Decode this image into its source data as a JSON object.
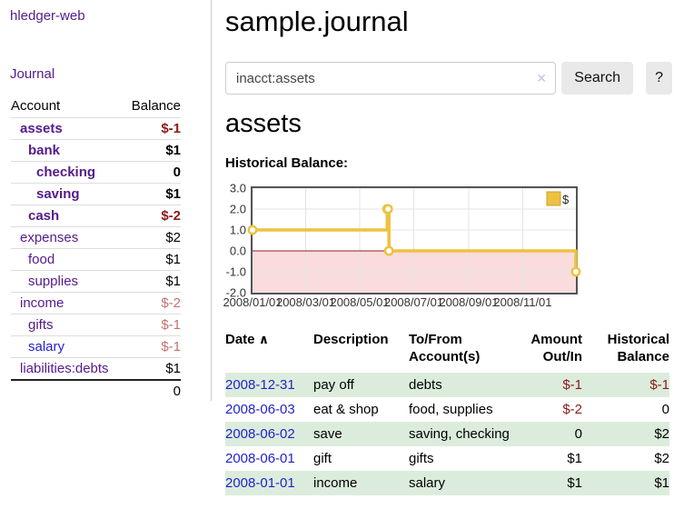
{
  "sidebar": {
    "app_title": "hledger-web",
    "journal_link": "Journal",
    "accounts": {
      "col_account": "Account",
      "col_balance": "Balance",
      "rows": [
        {
          "name": "assets",
          "balance": "$-1",
          "level": 1,
          "current": true,
          "balance_tone": "neg-strong",
          "link_tone": "visited"
        },
        {
          "name": "bank",
          "balance": "$1",
          "level": 2,
          "current": true,
          "balance_tone": "pos-strong",
          "link_tone": "visited"
        },
        {
          "name": "checking",
          "balance": "0",
          "level": 3,
          "current": true,
          "balance_tone": "pos-strong",
          "link_tone": "visited"
        },
        {
          "name": "saving",
          "balance": "$1",
          "level": 3,
          "current": true,
          "balance_tone": "pos-strong",
          "link_tone": "visited"
        },
        {
          "name": "cash",
          "balance": "$-2",
          "level": 2,
          "current": true,
          "balance_tone": "neg-strong",
          "link_tone": "visited"
        },
        {
          "name": "expenses",
          "balance": "$2",
          "level": 1,
          "current": false,
          "balance_tone": "plain",
          "link_tone": "visited"
        },
        {
          "name": "food",
          "balance": "$1",
          "level": 2,
          "current": false,
          "balance_tone": "plain",
          "link_tone": "visited"
        },
        {
          "name": "supplies",
          "balance": "$1",
          "level": 2,
          "current": false,
          "balance_tone": "plain",
          "link_tone": "visited"
        },
        {
          "name": "income",
          "balance": "$-2",
          "level": 1,
          "current": false,
          "balance_tone": "neg-soft",
          "link_tone": "visited"
        },
        {
          "name": "gifts",
          "balance": "$-1",
          "level": 2,
          "current": false,
          "balance_tone": "neg-soft",
          "link_tone": "visited"
        },
        {
          "name": "salary",
          "balance": "$-1",
          "level": 2,
          "current": false,
          "balance_tone": "neg-soft",
          "link_tone": "unvisited"
        },
        {
          "name": "liabilities:debts",
          "balance": "$1",
          "level": 1,
          "current": false,
          "balance_tone": "plain",
          "link_tone": "visited"
        }
      ],
      "total": "0"
    }
  },
  "main": {
    "title": "sample.journal",
    "search": {
      "value": "inacct:assets",
      "clear_icon": "✕",
      "search_button": "Search",
      "help_button": "?"
    },
    "account_heading": "assets",
    "register": {
      "headers": {
        "date": "Date",
        "sort_indicator": "∧",
        "description": "Description",
        "tofrom": "To/From Account(s)",
        "amount": "Amount Out/In",
        "balance": "Historical Balance"
      },
      "rows": [
        {
          "date": "2008-12-31",
          "description": "pay off",
          "accounts": "debts",
          "amount": "$-1",
          "amount_tone": "neg",
          "balance": "$-1",
          "balance_tone": "neg",
          "shaded": true
        },
        {
          "date": "2008-06-03",
          "description": "eat & shop",
          "accounts": "food, supplies",
          "amount": "$-2",
          "amount_tone": "neg",
          "balance": "0",
          "balance_tone": "plain",
          "shaded": false
        },
        {
          "date": "2008-06-02",
          "description": "save",
          "accounts": "saving, checking",
          "amount": "0",
          "amount_tone": "plain",
          "balance": "$2",
          "balance_tone": "plain",
          "shaded": true
        },
        {
          "date": "2008-06-01",
          "description": "gift",
          "accounts": "gifts",
          "amount": "$1",
          "amount_tone": "plain",
          "balance": "$2",
          "balance_tone": "plain",
          "shaded": false
        },
        {
          "date": "2008-01-01",
          "description": "income",
          "accounts": "salary",
          "amount": "$1",
          "amount_tone": "plain",
          "balance": "$1",
          "balance_tone": "plain",
          "shaded": true
        }
      ]
    }
  },
  "colors": {
    "link_visited": "#551a8b",
    "link_unvisited": "#2323cc",
    "negative_strong": "#8b1a1a",
    "negative_soft": "#c1736e",
    "shaded_row_green": "#dcecdc",
    "series_gold": "#edc240",
    "chart_negative_fill": "#fadcdc",
    "zero_line": "#8b1f1f",
    "chart_frame": "#545454"
  },
  "chart_data": {
    "type": "line",
    "title": "Historical Balance:",
    "series": [
      {
        "name": "$",
        "color": "#edc240",
        "step": true,
        "points": [
          {
            "x": "2008-01-01",
            "y": 1
          },
          {
            "x": "2008-06-01",
            "y": 2
          },
          {
            "x": "2008-06-02",
            "y": 2
          },
          {
            "x": "2008-06-03",
            "y": 0
          },
          {
            "x": "2008-12-31",
            "y": -1
          }
        ]
      }
    ],
    "xlim": [
      "2008-01-01",
      "2008-12-31"
    ],
    "ylim": [
      -2,
      3
    ],
    "x_ticks": [
      {
        "label": "2008/01/01",
        "date": "2008-01-01"
      },
      {
        "label": "2008/03/01",
        "date": "2008-03-01"
      },
      {
        "label": "2008/05/01",
        "date": "2008-05-01"
      },
      {
        "label": "2008/07/01",
        "date": "2008-07-01"
      },
      {
        "label": "2008/09/01",
        "date": "2008-09-01"
      },
      {
        "label": "2008/11/01",
        "date": "2008-11-01"
      }
    ],
    "y_ticks": [
      "3.0",
      "2.0",
      "1.0",
      "0.0",
      "-1.0",
      "-2.0"
    ],
    "grid": true,
    "negative_region_shaded": true,
    "legend": {
      "label": "$",
      "position": "top-right"
    }
  }
}
